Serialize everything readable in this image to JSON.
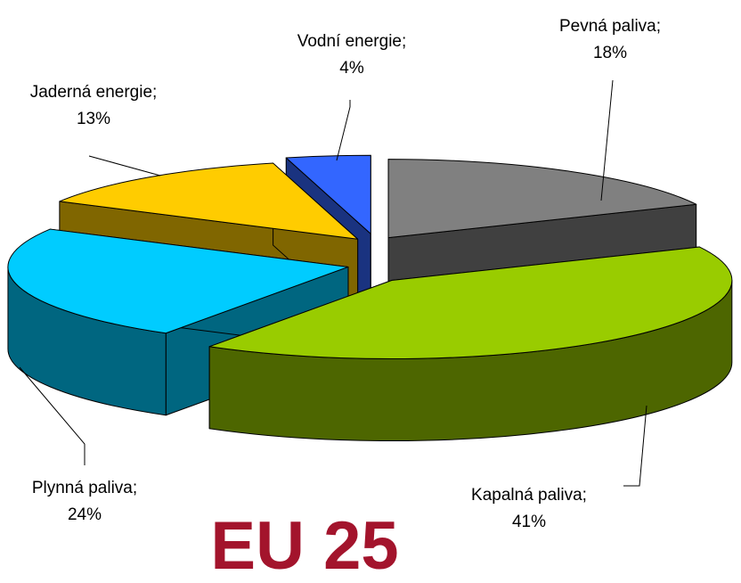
{
  "chart_data": {
    "type": "pie3d",
    "title": "EU 25",
    "categories": [
      "Pevná paliva;",
      "Kapalná paliva;",
      "Plynná paliva;",
      "Jaderná energie;",
      "Vodní energie;"
    ],
    "values": [
      18,
      41,
      24,
      13,
      4
    ],
    "value_labels": [
      "18%",
      "41%",
      "24%",
      "13%",
      "4%"
    ],
    "colors": [
      "#808080",
      "#99cc00",
      "#00ccff",
      "#ffcc00",
      "#3366ff"
    ]
  }
}
